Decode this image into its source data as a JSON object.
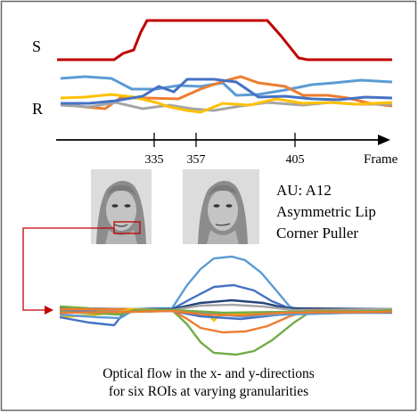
{
  "labels": {
    "s_row": "S",
    "r_row": "R",
    "frame_axis": "Frame",
    "frame_ticks": [
      "335",
      "357",
      "405"
    ],
    "au_line1": "AU: A12",
    "au_line2": "Asymmetric Lip",
    "au_line3": "Corner Puller",
    "caption_line1": "Optical flow in the x- and y-directions",
    "caption_line2": "for six ROIs at varying granularities"
  },
  "colors": {
    "frame_border": "#666666",
    "s_curve": "#c00000",
    "roi_highlight": "#c00000",
    "blue_light": "#5b9bd5",
    "orange": "#ed7d31",
    "gray": "#a5a5a5",
    "yellow": "#ffc000",
    "blue_dark": "#4472c4",
    "green": "#70ad47",
    "navy": "#264478"
  },
  "icons": [
    "face-photo-onset",
    "face-photo-apex",
    "arrow-right-icon"
  ]
}
